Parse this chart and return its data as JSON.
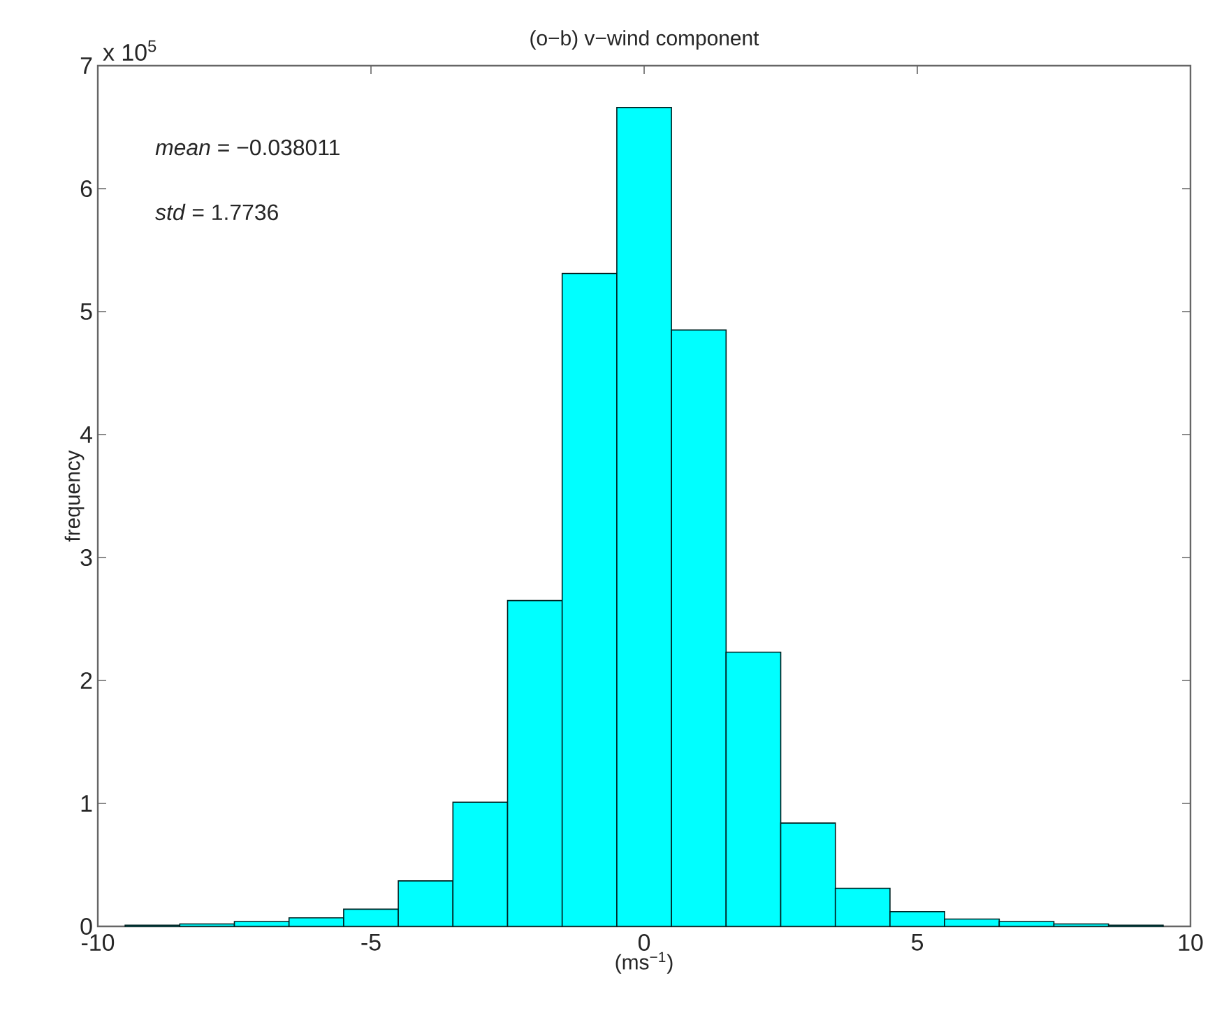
{
  "chart_data": {
    "type": "histogram",
    "title": "(o−b) v−wind component",
    "xlabel": "(ms$^{−1}$)",
    "ylabel": "frequency",
    "annotations": [
      "x 10$^{5}$",
      "*mean* = −0.038011",
      "*std*  = 1.7736"
    ],
    "bins": [
      -9.5,
      -8.5,
      -7.5,
      -6.5,
      -5.5,
      -4.5,
      -3.5,
      -2.5,
      -1.5,
      -0.5,
      0.5,
      1.5,
      2.5,
      3.5,
      4.5,
      5.5,
      6.5,
      7.5,
      8.5,
      9.5
    ],
    "values": [
      0.01,
      0.02,
      0.04,
      0.07,
      0.14,
      0.37,
      1.01,
      2.65,
      5.31,
      6.66,
      4.85,
      2.23,
      0.84,
      0.31,
      0.12,
      0.06,
      0.04,
      0.02,
      0.01
    ],
    "color": "#00ffff",
    "xlim": [
      -10,
      10
    ],
    "ylim": [
      0,
      7
    ],
    "xticks": [
      -10,
      -5,
      0,
      5,
      10
    ],
    "yticks": [
      0,
      1,
      2,
      3,
      4,
      5,
      6,
      7
    ]
  }
}
